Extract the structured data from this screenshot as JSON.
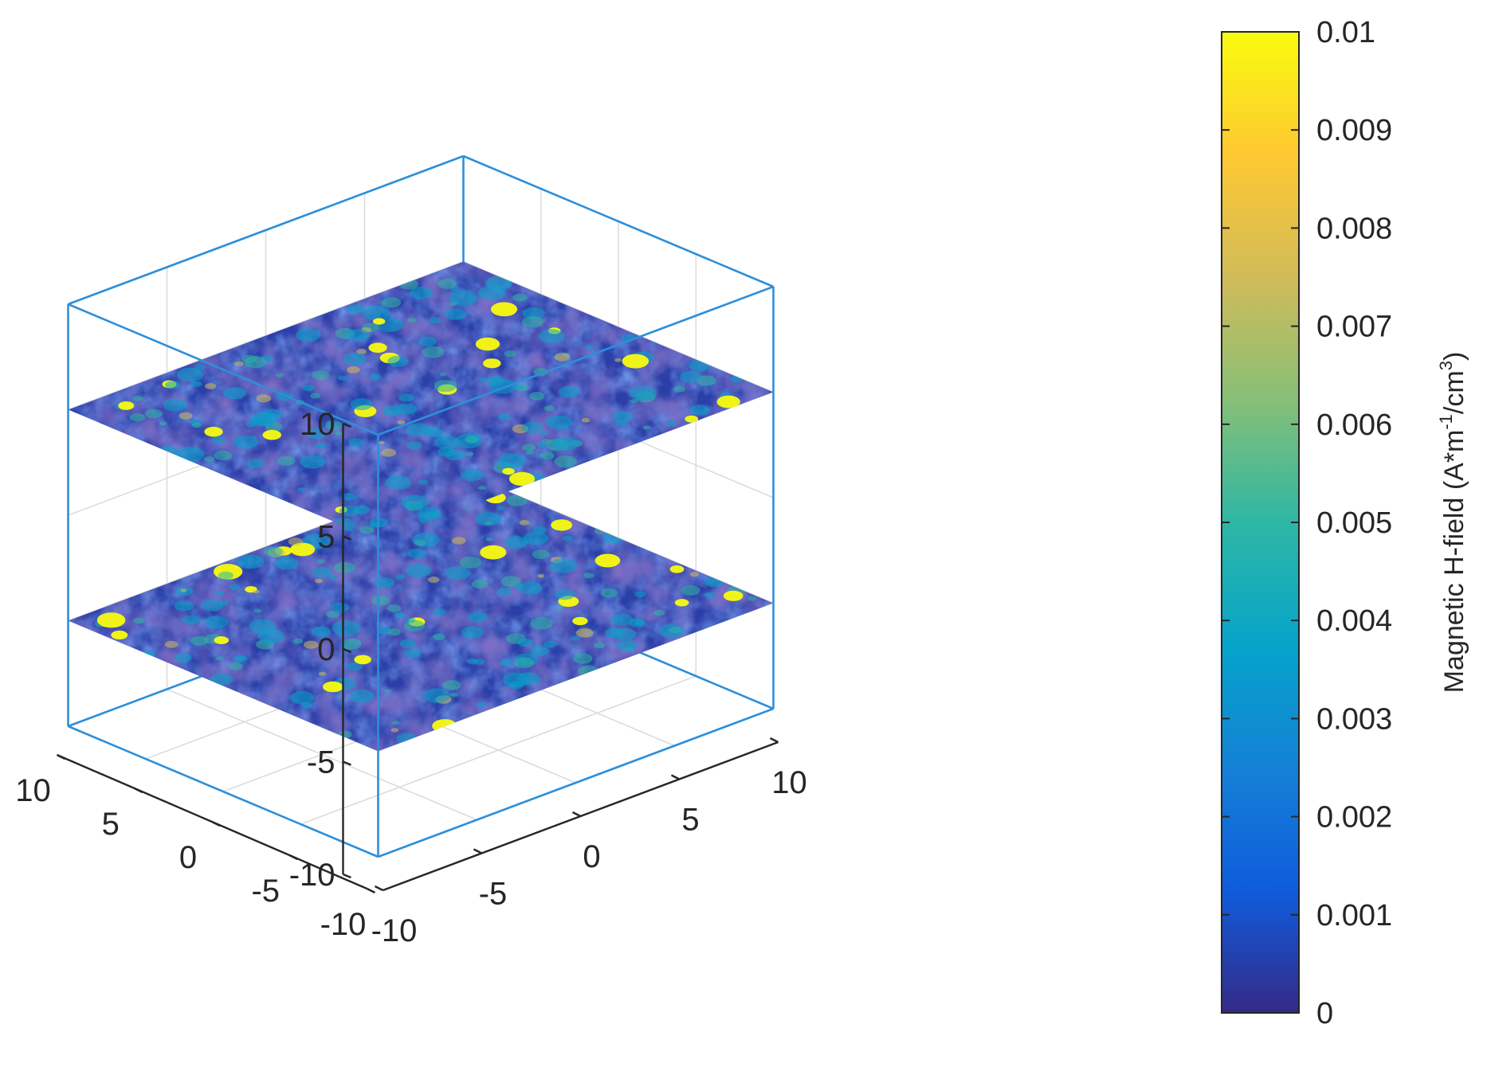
{
  "chart_data": {
    "type": "heatmap",
    "variant": "3d-slice-volume",
    "slices": [
      {
        "name": "",
        "z": 5
      },
      {
        "name": "",
        "z": -5
      }
    ],
    "axes": {
      "x": {
        "ticks": [
          -10,
          -5,
          0,
          5,
          10
        ],
        "labels": [
          "-10",
          "-5",
          "0",
          "5",
          "10"
        ],
        "range": [
          -10,
          10
        ]
      },
      "y": {
        "ticks": [
          -10,
          -5,
          0,
          5,
          10
        ],
        "labels": [
          "-10",
          "-5",
          "0",
          "5",
          "10"
        ],
        "range": [
          -10,
          10
        ]
      },
      "z": {
        "ticks": [
          -10,
          -5,
          0,
          5,
          10
        ],
        "labels": [
          "-10",
          "-5",
          "0",
          "5",
          "10"
        ],
        "range": [
          -10,
          10
        ]
      }
    },
    "grid": true,
    "colorbar": {
      "label_main": "Magnetic H-field (A*m",
      "sup1": "-1",
      "label_mid": "/cm",
      "sup2": "3",
      "label_end": ")",
      "range": [
        0,
        0.01
      ],
      "ticks": [
        "0",
        "0.001",
        "0.002",
        "0.003",
        "0.004",
        "0.005",
        "0.006",
        "0.007",
        "0.008",
        "0.009",
        "0.01"
      ],
      "colormap": "parula",
      "colors": [
        "#352a87",
        "#0f5cdd",
        "#1481d6",
        "#06a4ca",
        "#2eb7a4",
        "#87bf77",
        "#d1bb59",
        "#fec832",
        "#f9fb0e"
      ]
    },
    "box_color": "#2e8fd8",
    "slice_base_colors": [
      "#2b3fa8",
      "#2f6fe0",
      "#3a2f9a"
    ]
  }
}
